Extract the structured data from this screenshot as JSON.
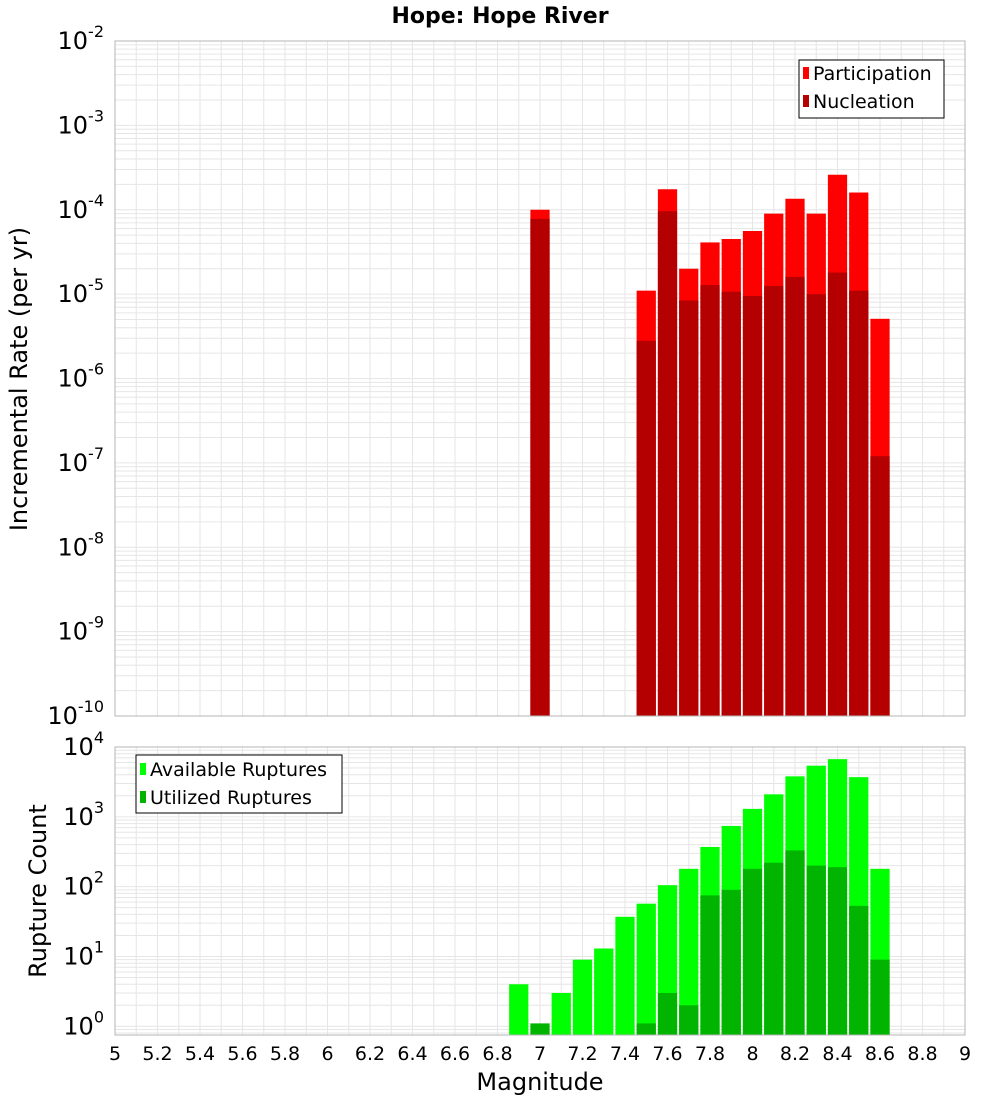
{
  "chart_data": [
    {
      "type": "bar",
      "title": "Hope: Hope River",
      "ylabel": "Incremental Rate (per yr)",
      "xlabel": "",
      "xlim": [
        5,
        9
      ],
      "ylim": [
        1e-10,
        0.01
      ],
      "yscale": "log",
      "grid": true,
      "legend_position": "top-right",
      "bin_width": 0.1,
      "x": [
        7.0,
        7.5,
        7.6,
        7.7,
        7.8,
        7.9,
        8.0,
        8.1,
        8.2,
        8.3,
        8.4,
        8.5,
        8.6
      ],
      "series": [
        {
          "name": "Participation",
          "color": "#ff0000",
          "values": [
            0.0001,
            1.1e-05,
            0.000175,
            2e-05,
            4.1e-05,
            4.5e-05,
            5.6e-05,
            9e-05,
            0.000135,
            9e-05,
            0.00026,
            0.00016,
            5.1e-06
          ]
        },
        {
          "name": "Nucleation",
          "color": "#b40000",
          "values": [
            7.8e-05,
            2.8e-06,
            9.6e-05,
            8.4e-06,
            1.28e-05,
            1.07e-05,
            9.5e-06,
            1.25e-05,
            1.6e-05,
            1e-05,
            1.8e-05,
            1.1e-05,
            1.2e-07
          ]
        }
      ],
      "ytick_labels": [
        {
          "base": "10",
          "exp": "-10"
        },
        {
          "base": "10",
          "exp": "-9"
        },
        {
          "base": "10",
          "exp": "-8"
        },
        {
          "base": "10",
          "exp": "-7"
        },
        {
          "base": "10",
          "exp": "-6"
        },
        {
          "base": "10",
          "exp": "-5"
        },
        {
          "base": "10",
          "exp": "-4"
        },
        {
          "base": "10",
          "exp": "-3"
        },
        {
          "base": "10",
          "exp": "-2"
        }
      ]
    },
    {
      "type": "bar",
      "title": "",
      "ylabel": "Rupture Count",
      "xlabel": "Magnitude",
      "xlim": [
        5,
        9
      ],
      "ylim": [
        0.75,
        10000
      ],
      "yscale": "log",
      "grid": true,
      "legend_position": "top-left",
      "bin_width": 0.1,
      "x": [
        6.9,
        7.0,
        7.1,
        7.2,
        7.3,
        7.4,
        7.5,
        7.6,
        7.7,
        7.8,
        7.9,
        8.0,
        8.1,
        8.2,
        8.3,
        8.4,
        8.5,
        8.6
      ],
      "series": [
        {
          "name": "Available Ruptures",
          "color": "#00ff00",
          "values": [
            4,
            0,
            3,
            9,
            13,
            37,
            57,
            105,
            180,
            370,
            740,
            1300,
            2100,
            3800,
            5400,
            6700,
            3700,
            180
          ]
        },
        {
          "name": "Utilized Ruptures",
          "color": "#00b400",
          "values": [
            0,
            1.1,
            0,
            0,
            0,
            0,
            1.1,
            3,
            2,
            75,
            90,
            180,
            220,
            330,
            200,
            190,
            53,
            9
          ]
        }
      ],
      "ytick_labels": [
        {
          "base": "10",
          "exp": "0"
        },
        {
          "base": "10",
          "exp": "1"
        },
        {
          "base": "10",
          "exp": "2"
        },
        {
          "base": "10",
          "exp": "3"
        },
        {
          "base": "10",
          "exp": "4"
        }
      ],
      "xtick_labels": [
        "5",
        "5.2",
        "5.4",
        "5.6",
        "5.8",
        "6",
        "6.2",
        "6.4",
        "6.6",
        "6.8",
        "7",
        "7.2",
        "7.4",
        "7.6",
        "7.8",
        "8",
        "8.2",
        "8.4",
        "8.6",
        "8.8",
        "9"
      ]
    }
  ]
}
